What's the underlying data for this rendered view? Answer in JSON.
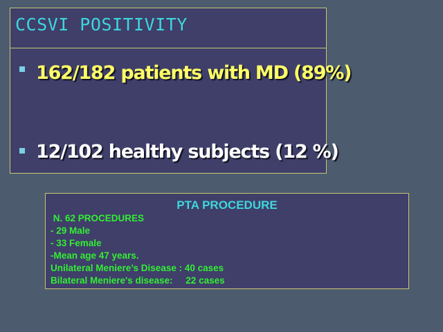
{
  "slide": {
    "title": "CCSVI POSITIVITY",
    "bullets": [
      {
        "text": "162/182 patients with MD (89%)",
        "color": "#ffff66"
      },
      {
        "text": "12/102 healthy subjects (12 %)",
        "color": "#ffffff"
      }
    ]
  },
  "pta": {
    "title": "PTA PROCEDURE",
    "lines": [
      " N. 62 PROCEDURES",
      "- 29 Male",
      "- 33 Female",
      "-Mean age 47 years.",
      "Unilateral Meniere’s Disease : 40 cases",
      "Bilateral Meniere's disease:     22 cases"
    ]
  },
  "colors": {
    "background": "#4d5b6f",
    "box": "#3f3f6a",
    "border": "#c8c870",
    "title": "#3fd6dc",
    "detail_text": "#33ee33"
  }
}
